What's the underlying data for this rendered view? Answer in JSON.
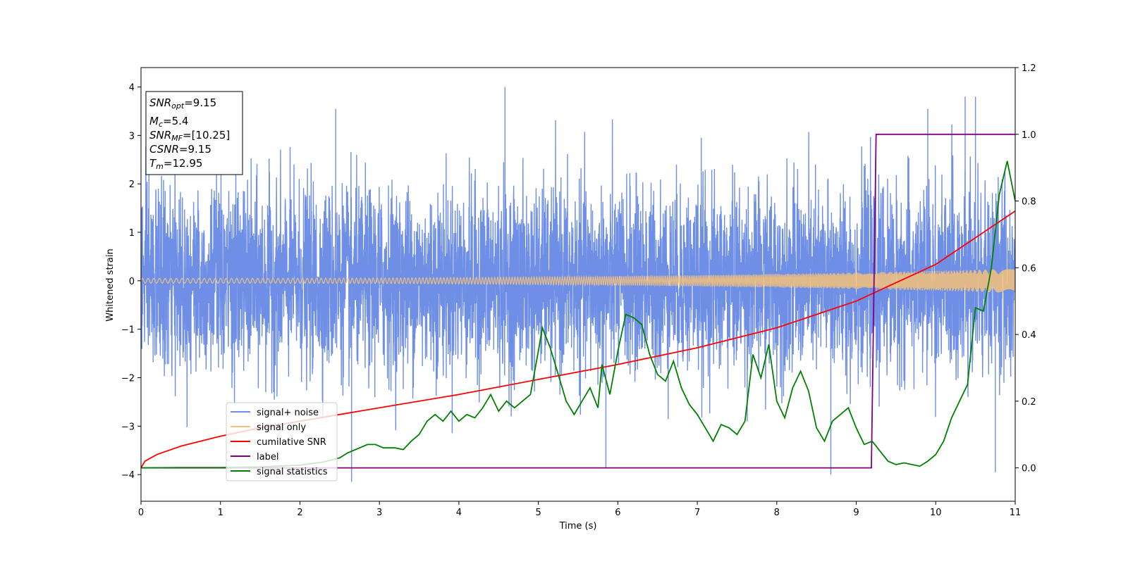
{
  "chart_data": {
    "type": "line",
    "title": "",
    "xlabel": "Time (s)",
    "ylabel": "Whitened strain",
    "xlim": [
      0,
      11
    ],
    "ylim": [
      -4.55,
      4.4
    ],
    "y2lim": [
      -0.1,
      1.2
    ],
    "x_ticks": [
      "0",
      "1",
      "2",
      "3",
      "4",
      "5",
      "6",
      "7",
      "8",
      "9",
      "10",
      "11"
    ],
    "y_ticks": [
      "−4",
      "−3",
      "−2",
      "−1",
      "0",
      "1",
      "2",
      "3",
      "4"
    ],
    "y2_ticks": [
      "0.0",
      "0.2",
      "0.4",
      "0.6",
      "0.8",
      "1.0",
      "1.2"
    ],
    "grid": false,
    "legend_position": "lower-left",
    "info_box": {
      "snr_opt": {
        "symbol": "SNR",
        "sub": "opt",
        "value": "=9.15"
      },
      "mc": {
        "symbol": "M",
        "sub": "c",
        "value": "=5.4"
      },
      "snr_mf": {
        "symbol": "SNR",
        "sub": "MF",
        "value": "=[10.25]"
      },
      "csnr": {
        "symbol": "CSNR",
        "sub": "",
        "value": "=9.15"
      },
      "tm": {
        "symbol": "T",
        "sub": "m",
        "value": "=12.95"
      }
    },
    "series": [
      {
        "name": "signal+ noise",
        "color": "#6f8fe6",
        "axis": "left",
        "kind": "noise",
        "typical_amplitude": 1.5,
        "peak_values": [
          [
            0.1,
            2.8
          ],
          [
            0.95,
            2.9
          ],
          [
            2.45,
            3.55
          ],
          [
            4.58,
            4.0
          ],
          [
            7.05,
            2.95
          ],
          [
            9.9,
            3.55
          ],
          [
            10.37,
            3.8
          ],
          [
            10.5,
            3.8
          ],
          [
            2.65,
            -4.15
          ],
          [
            5.85,
            -3.85
          ],
          [
            8.68,
            -4.0
          ],
          [
            10.75,
            -3.95
          ]
        ]
      },
      {
        "name": "signal only",
        "color": "#f5c27a",
        "axis": "left",
        "kind": "chirp",
        "amplitude_start": 0.05,
        "amplitude_end": 0.25
      },
      {
        "name": "cumilative SNR",
        "color": "#ff0000",
        "axis": "right",
        "x": [
          0,
          0.05,
          0.2,
          0.5,
          1,
          1.5,
          2,
          3,
          4,
          5,
          6,
          7,
          8,
          9,
          9.5,
          10,
          10.5,
          11
        ],
        "y": [
          0.0,
          0.02,
          0.04,
          0.065,
          0.095,
          0.12,
          0.14,
          0.18,
          0.22,
          0.265,
          0.31,
          0.36,
          0.42,
          0.5,
          0.555,
          0.61,
          0.69,
          0.77
        ]
      },
      {
        "name": "label",
        "color": "#800080",
        "axis": "right",
        "x": [
          0,
          9.19,
          9.25,
          11
        ],
        "y": [
          0,
          0,
          1,
          1
        ]
      },
      {
        "name": "signal statistics",
        "color": "#008000",
        "axis": "right",
        "x": [
          0,
          0.5,
          1,
          1.5,
          2,
          2.3,
          2.5,
          2.6,
          2.75,
          2.85,
          2.95,
          3.05,
          3.2,
          3.3,
          3.4,
          3.5,
          3.6,
          3.7,
          3.8,
          3.9,
          4.0,
          4.1,
          4.2,
          4.3,
          4.4,
          4.5,
          4.6,
          4.7,
          4.8,
          4.9,
          5.0,
          5.05,
          5.15,
          5.25,
          5.35,
          5.45,
          5.55,
          5.65,
          5.75,
          5.8,
          5.9,
          6.0,
          6.1,
          6.2,
          6.3,
          6.4,
          6.5,
          6.6,
          6.7,
          6.8,
          6.9,
          7.0,
          7.1,
          7.2,
          7.3,
          7.4,
          7.5,
          7.6,
          7.7,
          7.8,
          7.9,
          8.0,
          8.1,
          8.2,
          8.3,
          8.4,
          8.5,
          8.6,
          8.7,
          8.8,
          8.9,
          9.0,
          9.1,
          9.2,
          9.3,
          9.4,
          9.5,
          9.6,
          9.7,
          9.8,
          9.9,
          10.0,
          10.1,
          10.2,
          10.3,
          10.4,
          10.5,
          10.6,
          10.7,
          10.8,
          10.9,
          11.0
        ],
        "y": [
          0.0,
          0.001,
          0.001,
          0.003,
          0.008,
          0.018,
          0.03,
          0.045,
          0.06,
          0.07,
          0.07,
          0.06,
          0.06,
          0.055,
          0.08,
          0.1,
          0.14,
          0.16,
          0.14,
          0.17,
          0.14,
          0.16,
          0.15,
          0.18,
          0.22,
          0.17,
          0.2,
          0.18,
          0.2,
          0.22,
          0.35,
          0.42,
          0.36,
          0.28,
          0.2,
          0.16,
          0.2,
          0.24,
          0.18,
          0.31,
          0.22,
          0.35,
          0.46,
          0.45,
          0.43,
          0.34,
          0.28,
          0.26,
          0.32,
          0.24,
          0.19,
          0.16,
          0.12,
          0.08,
          0.13,
          0.12,
          0.1,
          0.14,
          0.34,
          0.27,
          0.37,
          0.2,
          0.15,
          0.24,
          0.29,
          0.23,
          0.12,
          0.08,
          0.14,
          0.16,
          0.18,
          0.12,
          0.07,
          0.08,
          0.05,
          0.02,
          0.01,
          0.015,
          0.01,
          0.005,
          0.02,
          0.04,
          0.08,
          0.15,
          0.2,
          0.25,
          0.48,
          0.47,
          0.6,
          0.82,
          0.92,
          0.8
        ]
      }
    ]
  }
}
